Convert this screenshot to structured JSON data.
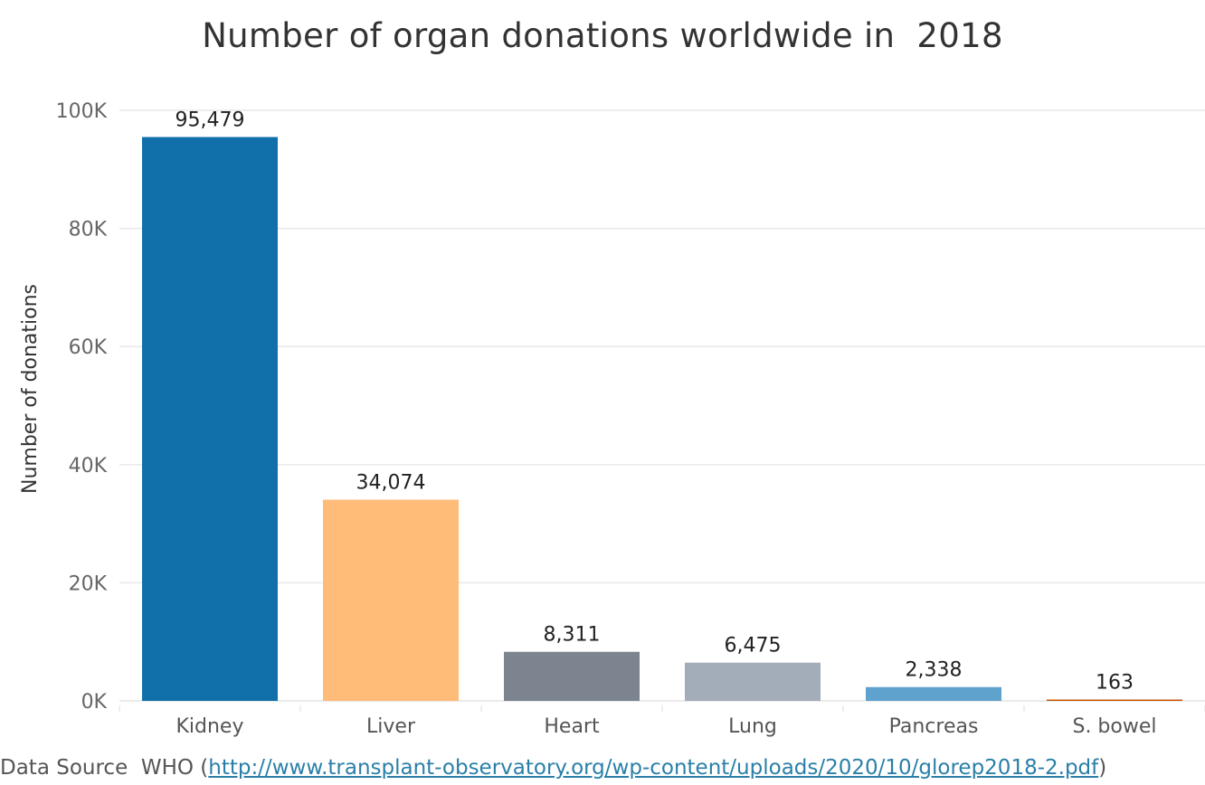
{
  "chart_data": {
    "type": "bar",
    "title": "Number of organ donations worldwide in  2018",
    "xlabel": "",
    "ylabel": "Number of donations",
    "categories": [
      "Kidney",
      "Liver",
      "Heart",
      "Lung",
      "Pancreas",
      "S. bowel"
    ],
    "values": [
      95479,
      34074,
      8311,
      6475,
      2338,
      163
    ],
    "value_labels": [
      "95,479",
      "34,074",
      "8,311",
      "6,475",
      "2,338",
      "163"
    ],
    "colors": [
      "#1170aa",
      "#ffbc79",
      "#7b848f",
      "#a3acb9",
      "#5fa2ce",
      "#c85200"
    ],
    "ylim": [
      0,
      100000
    ],
    "yticks": [
      0,
      20000,
      40000,
      60000,
      80000,
      100000
    ],
    "ytick_labels": [
      "0K",
      "20K",
      "40K",
      "60K",
      "80K",
      "100K"
    ],
    "grid": true
  },
  "source": {
    "prefix": "Data Source  WHO (",
    "link_text": "http://www.transplant-observatory.org/wp-content/uploads/2020/10/glorep2018-2.pdf",
    "suffix": ")"
  }
}
